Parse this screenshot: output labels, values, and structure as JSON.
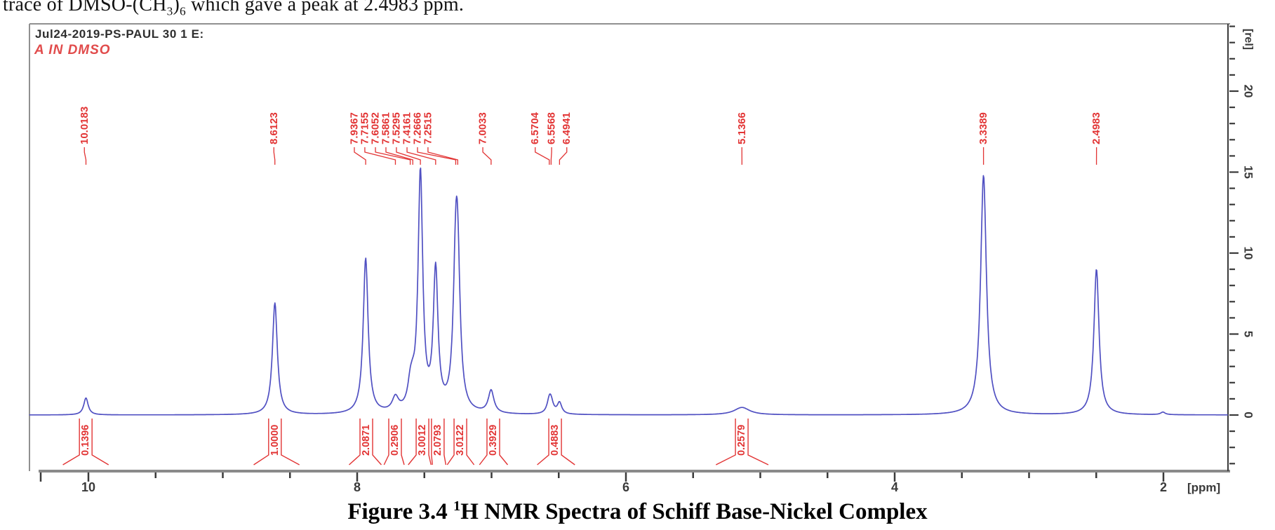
{
  "intro_text": {
    "pre": "trace of DMSO-(CH",
    "sub_a": "3",
    "mid": ")",
    "sub_b": "6",
    "post": " which gave a peak at 2.4983 ppm."
  },
  "caption": {
    "figure_pre": "Figure 3.4 ",
    "sup": "1",
    "figure_post": "H NMR Spectra of Schiff Base-Nickel Complex"
  },
  "chart_data": {
    "type": "line",
    "title": "Jul24-2019-PS-PAUL 30 1 E:",
    "sample_label": "A IN DMSO",
    "xlabel": "[ppm]",
    "ylabel": "[rel]",
    "x_axis": {
      "min": 1.52,
      "max": 10.44,
      "inverted": true,
      "major_ticks": [
        10,
        8,
        6,
        4,
        2
      ],
      "minor_step": 0.5
    },
    "y_axis": {
      "min": -3.4,
      "max": 24.2,
      "major_ticks": [
        0,
        5,
        10,
        15,
        20
      ],
      "minor_step": 1
    },
    "colors": {
      "trace": "#5050c2",
      "annotation": "#e23434",
      "axis": "#3a3a3a",
      "frame": "#909090",
      "axis_line": "#8a8a8a",
      "title": "#2e2e2e"
    },
    "peaks": [
      {
        "ppm": 10.0183,
        "height": 1.05,
        "hwhm": 0.02,
        "label": "10.0183",
        "label_ppm": 10.03
      },
      {
        "ppm": 8.6123,
        "height": 6.9,
        "hwhm": 0.022,
        "label": "8.6123",
        "label_ppm": 8.62
      },
      {
        "ppm": 7.9367,
        "height": 9.6,
        "hwhm": 0.022,
        "label": "7.9367",
        "label_ppm": 8.021
      },
      {
        "ppm": 7.7155,
        "height": 0.85,
        "hwhm": 0.028,
        "label": "7.7155",
        "label_ppm": 7.943
      },
      {
        "ppm": 7.6052,
        "height": 1.2,
        "hwhm": 0.022,
        "label": "7.6052",
        "label_ppm": 7.864
      },
      {
        "ppm": 7.5861,
        "height": 0.8,
        "hwhm": 0.02,
        "label": "7.5861",
        "label_ppm": 7.786
      },
      {
        "ppm": 7.5295,
        "height": 14.7,
        "hwhm": 0.021,
        "label": "7.5295",
        "label_ppm": 7.708
      },
      {
        "ppm": 7.4161,
        "height": 8.6,
        "hwhm": 0.021,
        "label": "7.4161",
        "label_ppm": 7.629
      },
      {
        "ppm": 7.2666,
        "height": 7.6,
        "hwhm": 0.022,
        "label": "7.2666",
        "label_ppm": 7.551
      },
      {
        "ppm": 7.2515,
        "height": 7.2,
        "hwhm": 0.022,
        "label": "7.2515",
        "label_ppm": 7.473
      },
      {
        "ppm": 7.0033,
        "height": 1.4,
        "hwhm": 0.025,
        "label": "7.0033",
        "label_ppm": 7.065
      },
      {
        "ppm": 6.5704,
        "height": 0.75,
        "hwhm": 0.02,
        "label": "6.5704",
        "label_ppm": 6.675
      },
      {
        "ppm": 6.5568,
        "height": 0.6,
        "hwhm": 0.02,
        "label": "6.5568",
        "label_ppm": 6.553
      },
      {
        "ppm": 6.4941,
        "height": 0.7,
        "hwhm": 0.02,
        "label": "6.4941",
        "label_ppm": 6.44
      },
      {
        "ppm": 5.1366,
        "height": 0.46,
        "hwhm": 0.07,
        "label": "5.1366",
        "label_ppm": 5.137
      },
      {
        "ppm": 3.3389,
        "height": 14.8,
        "hwhm": 0.026,
        "label": "3.3389",
        "label_ppm": 3.339
      },
      {
        "ppm": 2.4983,
        "height": 9.0,
        "hwhm": 0.023,
        "label": "2.4983",
        "label_ppm": 2.498
      },
      {
        "ppm": 2.004,
        "height": 0.16,
        "hwhm": 0.02,
        "label": null,
        "label_ppm": null
      }
    ],
    "integrations": [
      {
        "value": "0.1396",
        "ppm_center": 10.02,
        "ppm_from": 10.19,
        "ppm_to": 9.85
      },
      {
        "value": "1.0000",
        "ppm_center": 8.612,
        "ppm_from": 8.77,
        "ppm_to": 8.43
      },
      {
        "value": "2.0871",
        "ppm_center": 7.932,
        "ppm_from": 8.06,
        "ppm_to": 7.82
      },
      {
        "value": "0.2906",
        "ppm_center": 7.718,
        "ppm_from": 7.8,
        "ppm_to": 7.65
      },
      {
        "value": "3.0012",
        "ppm_center": 7.514,
        "ppm_from": 7.62,
        "ppm_to": 7.45
      },
      {
        "value": "2.0793",
        "ppm_center": 7.4,
        "ppm_from": 7.44,
        "ppm_to": 7.34
      },
      {
        "value": "3.0122",
        "ppm_center": 7.232,
        "ppm_from": 7.33,
        "ppm_to": 7.13
      },
      {
        "value": "0.3929",
        "ppm_center": 6.987,
        "ppm_from": 7.09,
        "ppm_to": 6.88
      },
      {
        "value": "0.4883",
        "ppm_center": 6.527,
        "ppm_from": 6.66,
        "ppm_to": 6.38
      },
      {
        "value": "0.2579",
        "ppm_center": 5.138,
        "ppm_from": 5.33,
        "ppm_to": 4.94
      }
    ]
  }
}
